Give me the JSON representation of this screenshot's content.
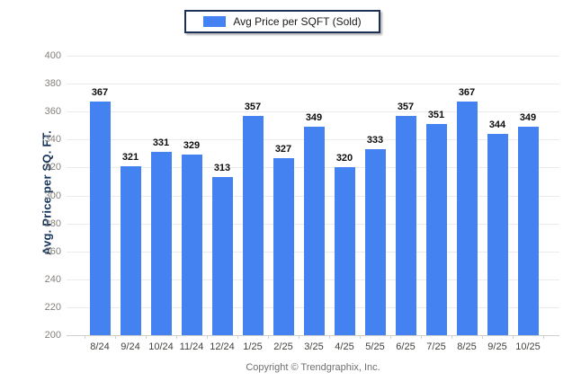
{
  "legend": {
    "label": "Avg Price per SQFT (Sold)",
    "swatch_color": "#4382f0"
  },
  "y_axis": {
    "title": "Avg. Price per SQ. FT.",
    "min": 200,
    "max": 400,
    "tick_step": 20,
    "tick_labels": [
      "400",
      "380",
      "360",
      "340",
      "320",
      "300",
      "280",
      "260",
      "240",
      "220",
      "200"
    ]
  },
  "footer": {
    "copyright": "Copyright © Trendgraphix, Inc."
  },
  "colors": {
    "bar": "#4382f0",
    "legend_border": "#1c3058",
    "y_title": "#17365d",
    "gridline": "#ebebeb",
    "axis_line": "#cfcfcf",
    "value_label": "#0d0d0d",
    "x_label": "#44423d",
    "y_label": "#85807a",
    "footer_text": "#6f6f6f",
    "background": "#ffffff"
  },
  "chart_data": {
    "type": "bar",
    "title": "Avg Price per SQFT (Sold)",
    "categories": [
      "8/24",
      "9/24",
      "10/24",
      "11/24",
      "12/24",
      "1/25",
      "2/25",
      "3/25",
      "4/25",
      "5/25",
      "6/25",
      "7/25",
      "8/25",
      "9/25",
      "10/25"
    ],
    "values": [
      367,
      321,
      331,
      329,
      313,
      357,
      327,
      349,
      320,
      333,
      357,
      351,
      367,
      344,
      349
    ],
    "xlabel": "",
    "ylabel": "Avg. Price per SQ. FT.",
    "ylim": [
      200,
      400
    ],
    "ytick_step": 20,
    "grid": true,
    "legend_position": "top-center",
    "legend_entries": [
      "Avg Price per SQFT (Sold)"
    ],
    "bar_color": "#4382f0",
    "value_labels_shown": true
  }
}
